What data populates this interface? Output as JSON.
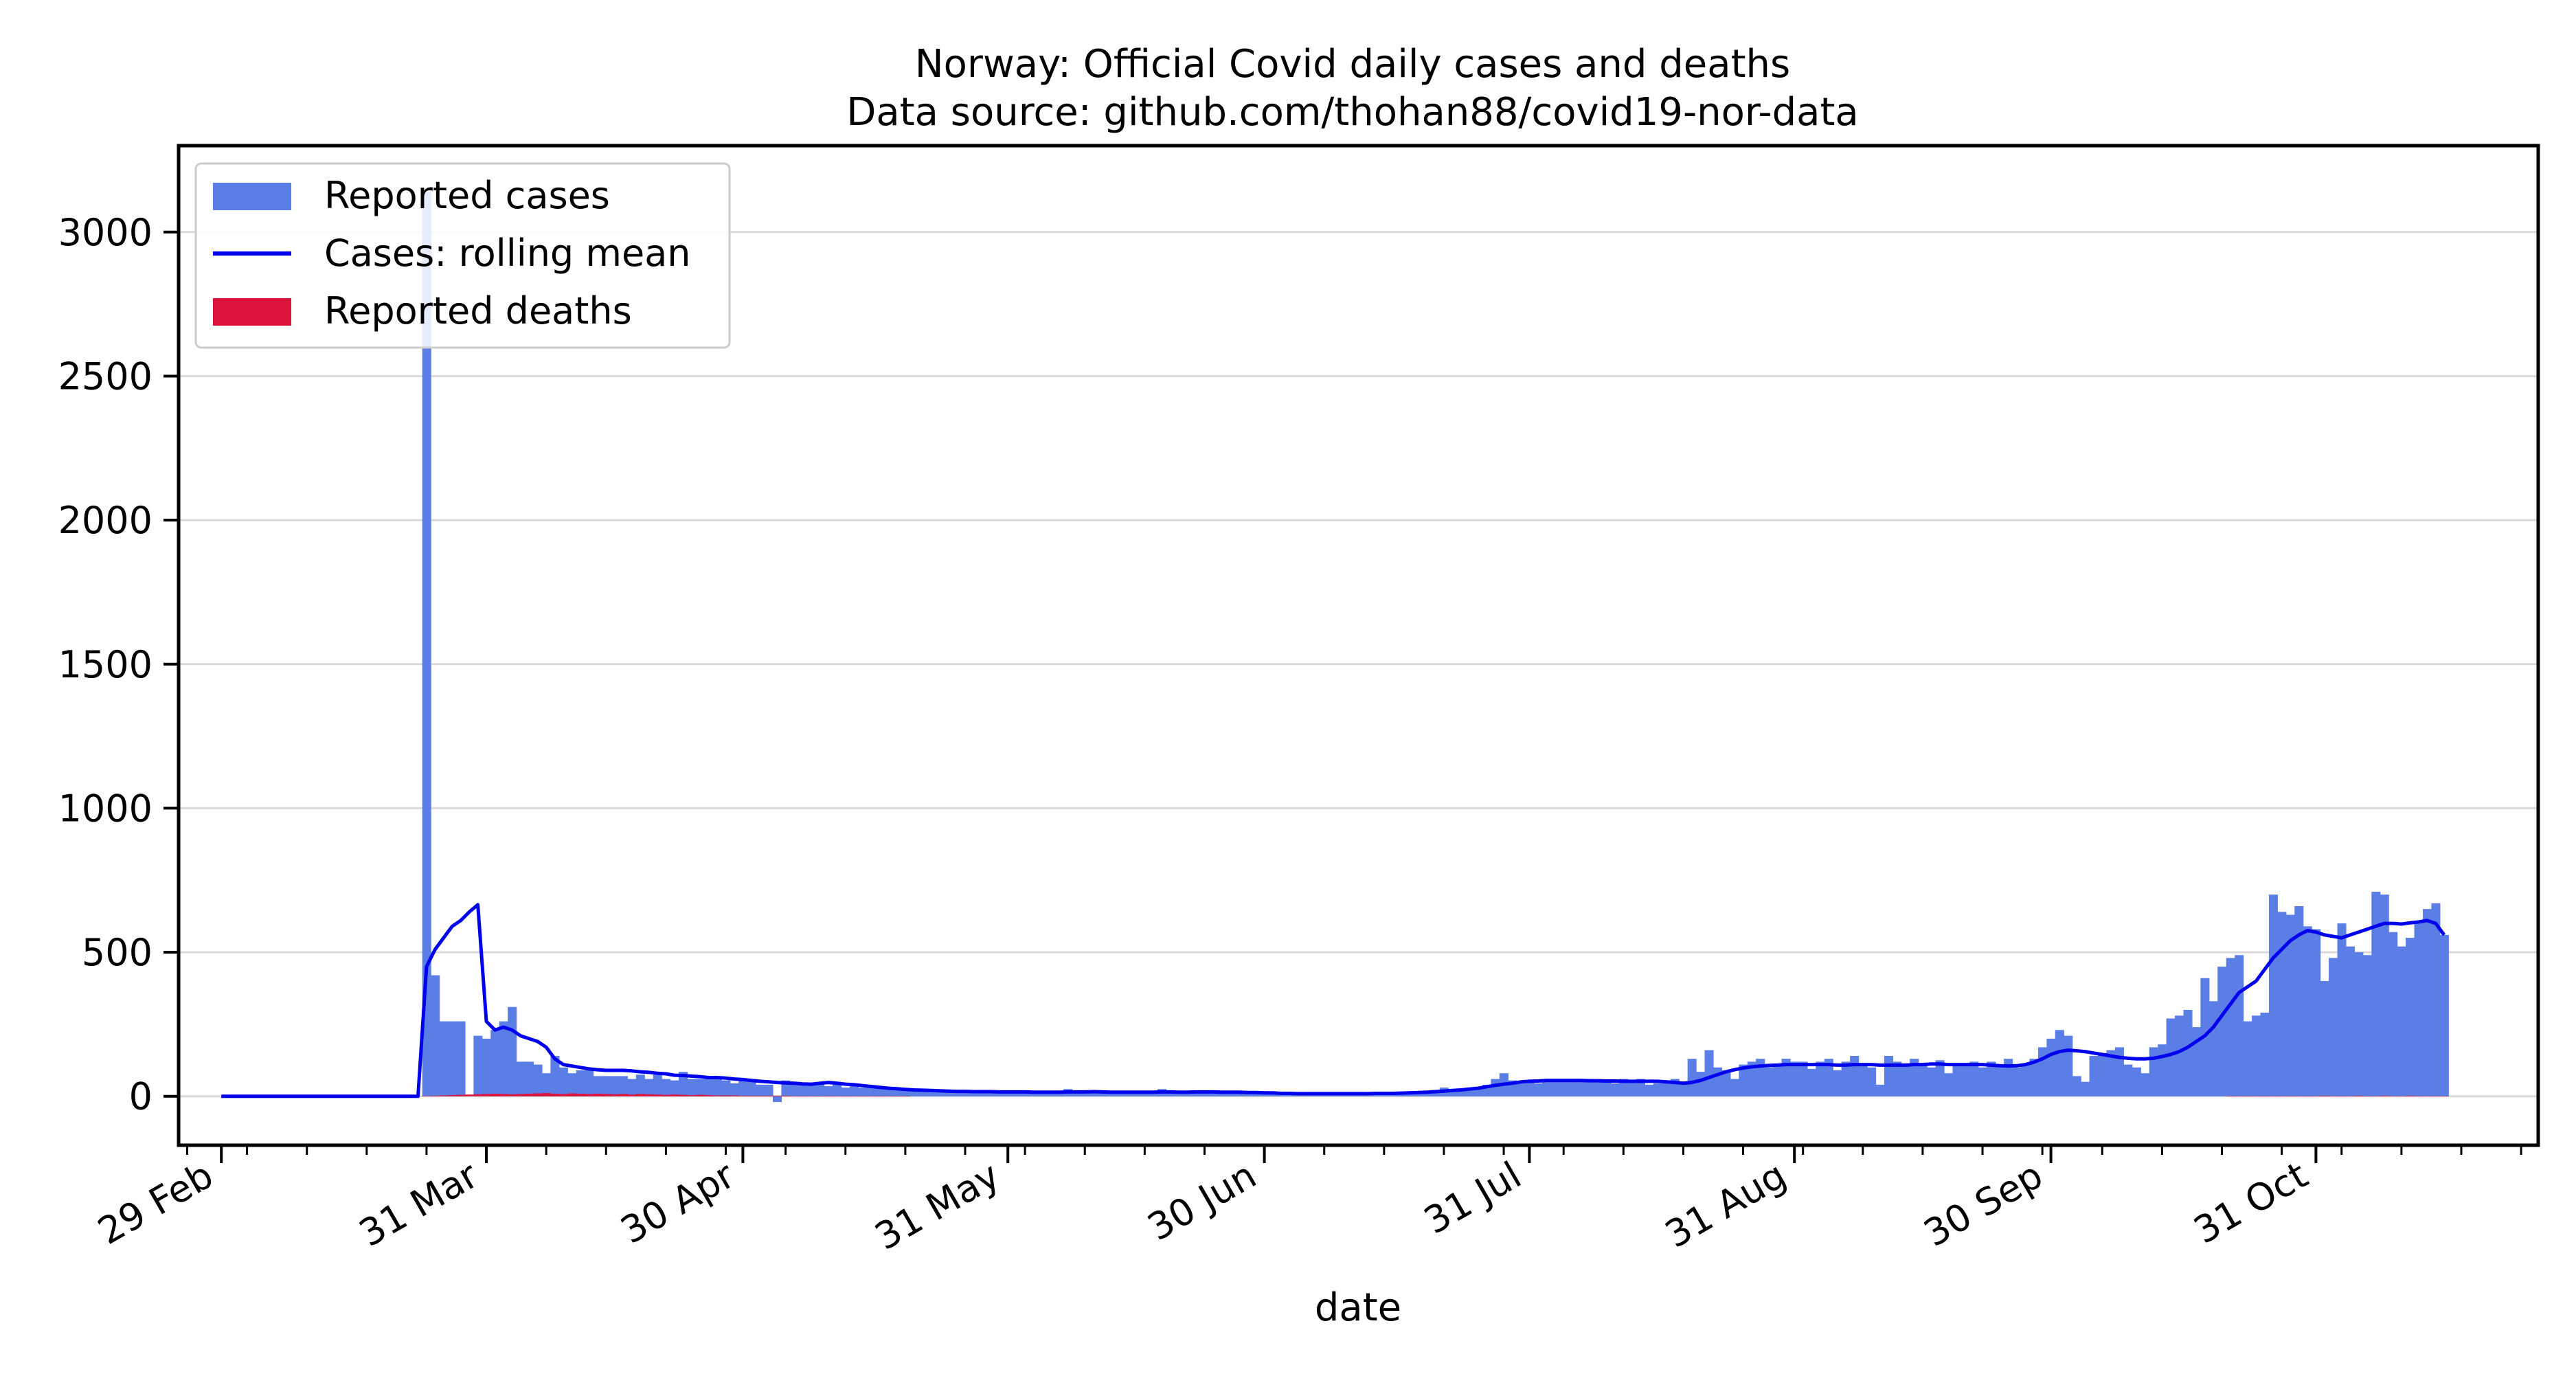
{
  "chart_data": {
    "type": "bar",
    "title": "Norway: Official Covid daily cases and deaths",
    "subtitle": "Data source: github.com/thohan88/covid19-nor-data",
    "xlabel": "date",
    "ylabel": "",
    "ylim": [
      -170,
      3300
    ],
    "xlim_dates": [
      "2020-02-24",
      "2020-11-26"
    ],
    "grid": "horizontal",
    "legend_position": "top-left",
    "yticks": [
      0,
      500,
      1000,
      1500,
      2000,
      2500,
      3000
    ],
    "ytick_labels": [
      "0",
      "500",
      "1000",
      "1500",
      "2000",
      "2500",
      "3000"
    ],
    "xticks": [
      "2020-02-29",
      "2020-03-31",
      "2020-04-30",
      "2020-05-31",
      "2020-06-30",
      "2020-07-31",
      "2020-08-31",
      "2020-09-30",
      "2020-10-31"
    ],
    "xtick_labels": [
      "29 Feb",
      "31 Mar",
      "30 Apr",
      "31 May",
      "30 Jun",
      "31 Jul",
      "31 Aug",
      "30 Sep",
      "31 Oct"
    ],
    "start_date": "2020-02-29",
    "series": [
      {
        "name": "Reported cases",
        "kind": "bar",
        "color": "#5a7de6",
        "values": [
          0,
          0,
          0,
          0,
          0,
          0,
          0,
          0,
          0,
          0,
          0,
          0,
          0,
          0,
          0,
          0,
          0,
          0,
          0,
          0,
          0,
          0,
          0,
          0,
          3150,
          420,
          260,
          260,
          260,
          0,
          210,
          200,
          230,
          260,
          310,
          120,
          120,
          110,
          80,
          140,
          100,
          80,
          90,
          90,
          70,
          70,
          70,
          70,
          60,
          75,
          60,
          75,
          60,
          55,
          85,
          60,
          60,
          65,
          60,
          55,
          45,
          55,
          60,
          40,
          40,
          -20,
          55,
          45,
          40,
          45,
          45,
          35,
          40,
          30,
          35,
          30,
          30,
          30,
          25,
          25,
          20,
          20,
          20,
          20,
          20,
          20,
          20,
          20,
          15,
          15,
          15,
          15,
          15,
          15,
          15,
          15,
          15,
          12,
          15,
          25,
          12,
          15,
          15,
          15,
          15,
          15,
          12,
          12,
          12,
          12,
          25,
          12,
          12,
          15,
          15,
          12,
          12,
          12,
          10,
          12,
          10,
          12,
          10,
          10,
          8,
          8,
          8,
          8,
          8,
          8,
          8,
          10,
          8,
          10,
          8,
          8,
          8,
          10,
          10,
          12,
          12,
          15,
          15,
          30,
          25,
          20,
          25,
          30,
          40,
          60,
          80,
          55,
          50,
          50,
          45,
          50,
          55,
          60,
          55,
          50,
          60,
          55,
          50,
          45,
          60,
          50,
          60,
          40,
          45,
          55,
          60,
          50,
          130,
          85,
          160,
          100,
          90,
          60,
          110,
          120,
          130,
          100,
          110,
          130,
          120,
          120,
          95,
          120,
          130,
          90,
          120,
          140,
          110,
          100,
          40,
          140,
          120,
          110,
          130,
          110,
          100,
          125,
          80,
          110,
          110,
          120,
          100,
          120,
          110,
          130,
          100,
          110,
          130,
          170,
          200,
          230,
          210,
          70,
          50,
          140,
          150,
          160,
          170,
          110,
          100,
          80,
          170,
          180,
          270,
          280,
          300,
          240,
          410,
          330,
          450,
          480,
          490,
          260,
          280,
          290,
          700,
          640,
          630,
          660,
          590,
          580,
          400,
          480,
          600,
          520,
          500,
          490,
          710,
          700,
          570,
          520,
          550,
          610,
          650,
          670,
          560
        ]
      },
      {
        "name": "Cases: rolling mean",
        "kind": "line",
        "color": "#0000ee",
        "values": [
          0,
          0,
          0,
          0,
          0,
          0,
          0,
          0,
          0,
          0,
          0,
          0,
          0,
          0,
          0,
          0,
          0,
          0,
          0,
          0,
          0,
          0,
          0,
          0,
          450,
          510,
          550,
          590,
          610,
          640,
          665,
          260,
          230,
          240,
          230,
          210,
          200,
          190,
          170,
          130,
          110,
          105,
          100,
          95,
          92,
          90,
          90,
          90,
          88,
          85,
          83,
          80,
          78,
          73,
          72,
          70,
          68,
          65,
          65,
          63,
          60,
          58,
          55,
          52,
          50,
          48,
          46,
          45,
          43,
          42,
          45,
          48,
          45,
          42,
          40,
          37,
          34,
          31,
          28,
          26,
          24,
          22,
          21,
          20,
          19,
          18,
          17,
          17,
          16,
          16,
          16,
          15,
          15,
          15,
          15,
          14,
          14,
          14,
          14,
          15,
          15,
          15,
          16,
          15,
          14,
          14,
          14,
          14,
          14,
          14,
          15,
          15,
          14,
          14,
          15,
          15,
          15,
          14,
          14,
          14,
          13,
          13,
          12,
          12,
          10,
          10,
          9,
          9,
          9,
          9,
          9,
          9,
          9,
          9,
          9,
          10,
          10,
          10,
          11,
          12,
          13,
          14,
          16,
          18,
          20,
          22,
          25,
          28,
          33,
          38,
          42,
          45,
          50,
          52,
          53,
          55,
          55,
          55,
          55,
          55,
          54,
          54,
          53,
          53,
          52,
          52,
          52,
          52,
          52,
          50,
          48,
          45,
          48,
          55,
          65,
          75,
          85,
          92,
          98,
          102,
          105,
          107,
          108,
          110,
          110,
          110,
          110,
          110,
          110,
          108,
          108,
          110,
          110,
          110,
          108,
          108,
          108,
          108,
          110,
          110,
          112,
          112,
          110,
          110,
          110,
          110,
          110,
          108,
          106,
          105,
          106,
          110,
          118,
          130,
          145,
          155,
          160,
          158,
          155,
          150,
          145,
          140,
          135,
          132,
          130,
          130,
          132,
          138,
          145,
          155,
          170,
          190,
          210,
          240,
          280,
          320,
          360,
          380,
          400,
          440,
          480,
          510,
          540,
          560,
          575,
          570,
          560,
          555,
          550,
          560,
          570,
          580,
          590,
          600,
          600,
          598,
          602,
          605,
          610,
          600,
          560
        ]
      },
      {
        "name": "Reported deaths",
        "kind": "bar",
        "color": "#dc143c",
        "values": [
          0,
          0,
          0,
          0,
          0,
          0,
          0,
          0,
          0,
          0,
          0,
          0,
          0,
          0,
          0,
          0,
          0,
          0,
          0,
          0,
          0,
          0,
          0,
          0,
          1,
          2,
          3,
          4,
          5,
          6,
          7,
          8,
          9,
          8,
          7,
          8,
          9,
          10,
          11,
          9,
          8,
          10,
          9,
          8,
          9,
          8,
          7,
          8,
          6,
          8,
          7,
          6,
          5,
          6,
          5,
          4,
          5,
          4,
          3,
          3,
          3,
          2,
          2,
          2,
          2,
          2,
          2,
          1,
          1,
          1,
          1,
          1,
          1,
          1,
          1,
          1,
          1,
          1,
          1,
          1,
          1,
          0,
          0,
          0,
          0,
          0,
          0,
          0,
          0,
          0,
          0,
          0,
          0,
          0,
          0,
          0,
          0,
          0,
          0,
          0,
          0,
          0,
          0,
          0,
          0,
          0,
          0,
          0,
          0,
          0,
          0,
          0,
          0,
          0,
          0,
          0,
          0,
          0,
          0,
          0,
          0,
          0,
          0,
          0,
          0,
          0,
          0,
          0,
          0,
          0,
          0,
          0,
          0,
          0,
          0,
          0,
          0,
          0,
          0,
          0,
          0,
          0,
          0,
          0,
          0,
          0,
          0,
          0,
          0,
          0,
          0,
          0,
          0,
          0,
          0,
          0,
          0,
          0,
          0,
          0,
          0,
          0,
          0,
          0,
          0,
          0,
          0,
          0,
          0,
          0,
          0,
          0,
          0,
          0,
          0,
          0,
          0,
          0,
          0,
          0,
          0,
          0,
          0,
          0,
          0,
          0,
          0,
          0,
          0,
          0,
          0,
          0,
          0,
          0,
          0,
          0,
          0,
          0,
          0,
          0,
          0,
          0,
          0,
          0,
          0,
          0,
          0,
          0,
          0,
          0,
          0,
          0,
          0,
          0,
          0,
          0,
          0,
          0,
          0,
          0,
          0,
          0,
          0,
          0,
          0,
          0,
          0,
          0,
          0,
          0,
          0,
          0,
          0,
          0,
          0,
          1,
          1,
          1,
          1,
          1,
          1,
          1,
          1,
          1,
          1,
          1,
          2,
          1,
          1,
          1,
          2,
          1,
          1,
          2,
          1,
          1,
          2,
          1,
          1,
          1,
          1
        ]
      }
    ]
  }
}
